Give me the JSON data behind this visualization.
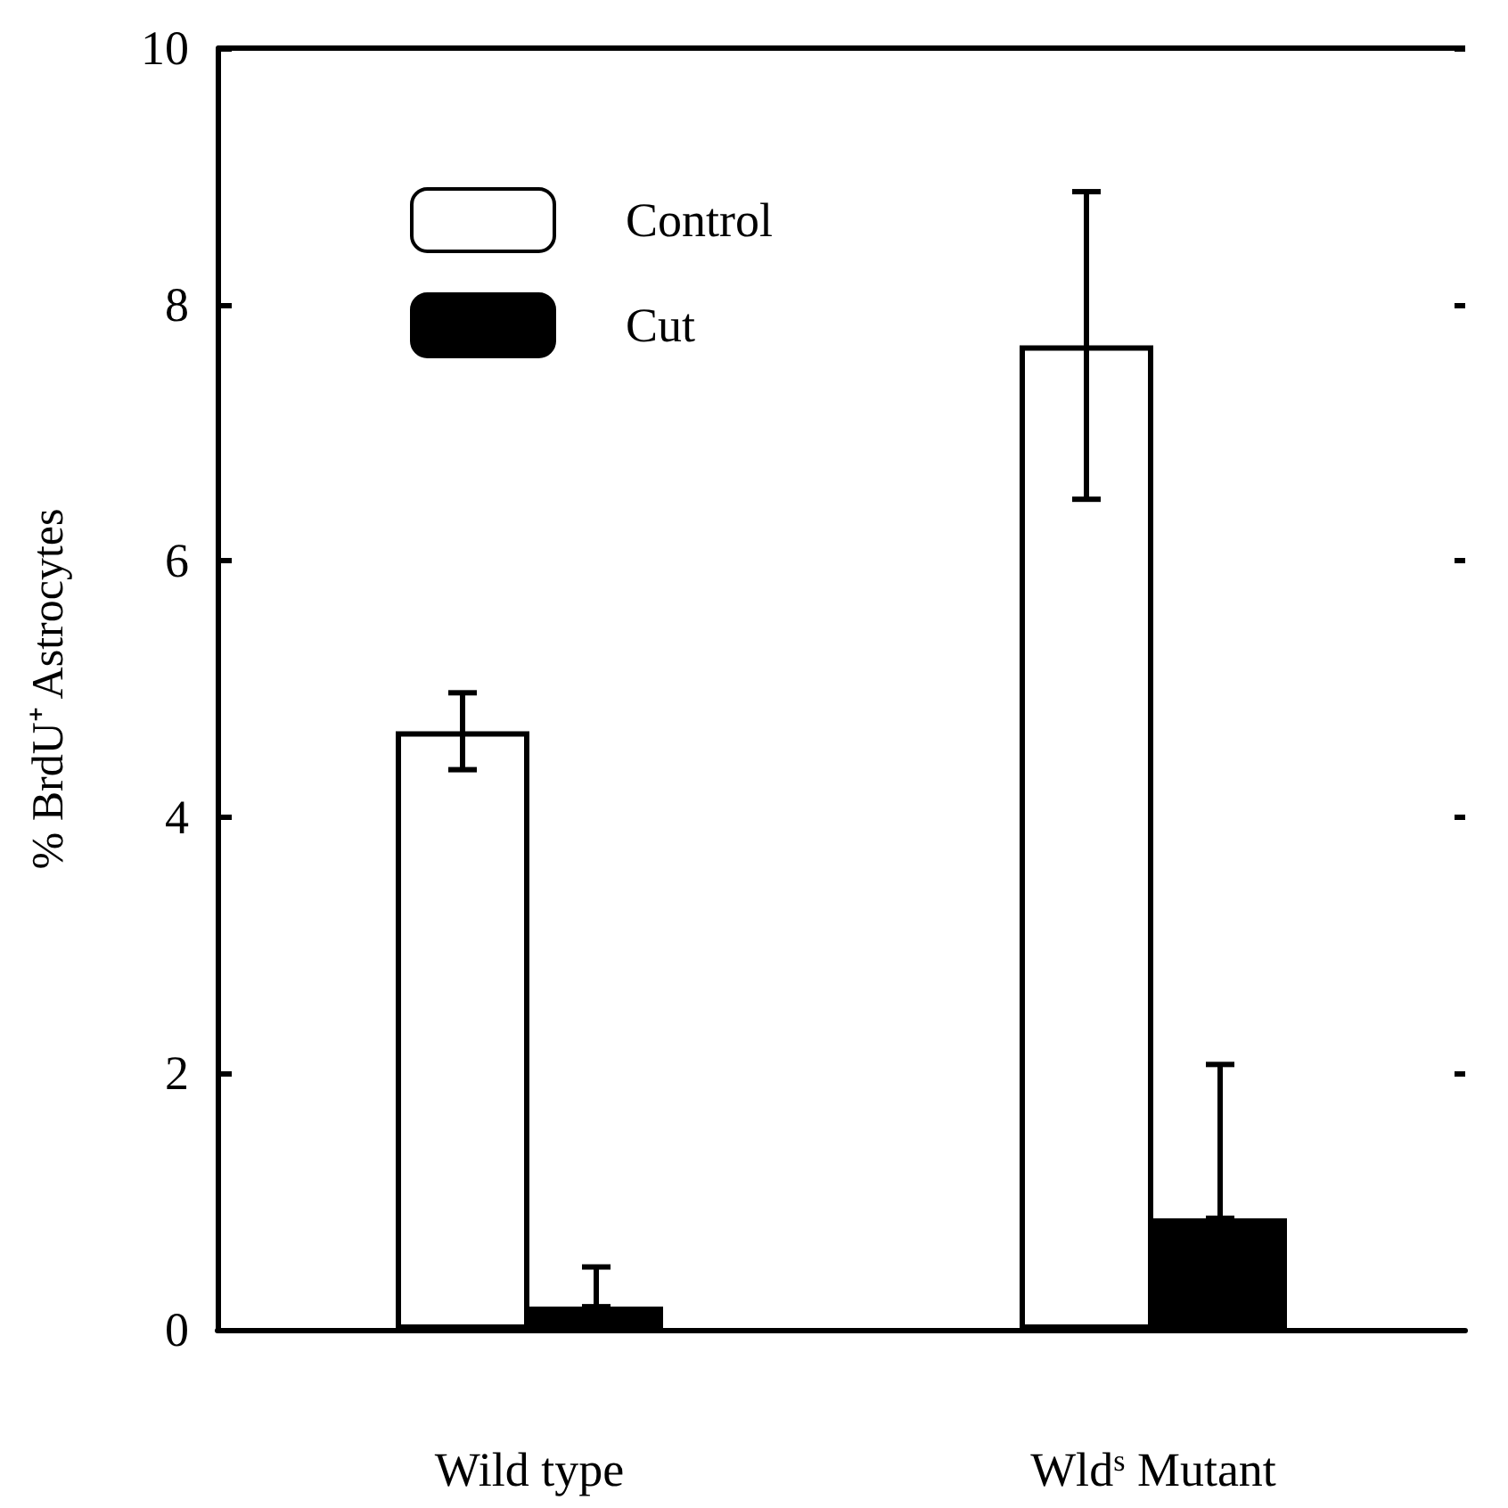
{
  "chart_data": {
    "type": "bar",
    "ylabel": "% BrdU⁺ Astrocytes",
    "categories": [
      "Wild type",
      "Wld$^{s}$ Mutant"
    ],
    "series": [
      {
        "name": "Control",
        "color": "#ffffff",
        "values": [
          4.67,
          7.68
        ],
        "errors": [
          0.3,
          1.2
        ]
      },
      {
        "name": "Cut",
        "color": "#000000",
        "values": [
          0.18,
          0.87
        ],
        "errors": [
          [
            0.18,
            0.49
          ],
          [
            0.87,
            2.07
          ]
        ]
      }
    ],
    "ylim": [
      0,
      10
    ],
    "yticks": [
      0,
      2,
      4,
      6,
      8,
      10
    ],
    "grid": false,
    "legend": "top left"
  }
}
